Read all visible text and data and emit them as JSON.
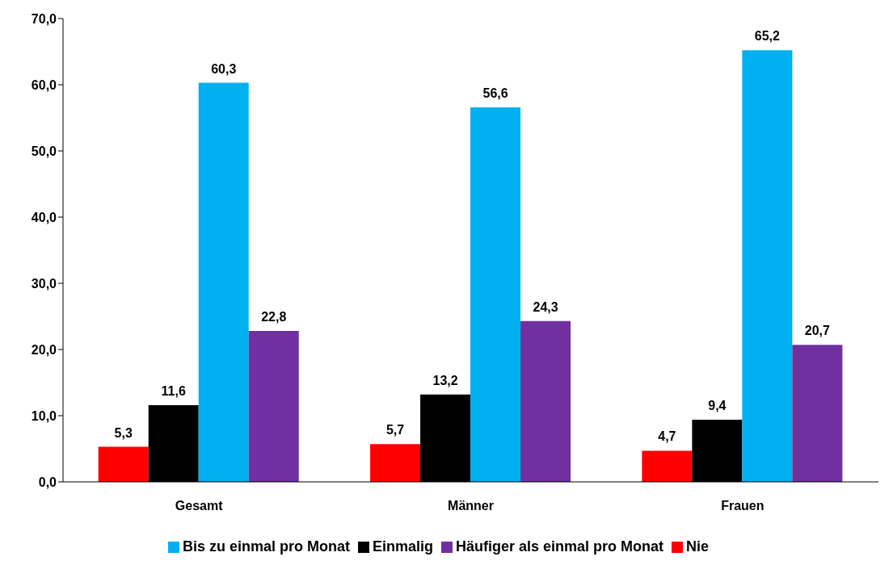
{
  "chart_data": {
    "type": "bar",
    "categories": [
      "Gesamt",
      "Männer",
      "Frauen"
    ],
    "series": [
      {
        "name": "Nie",
        "color": "#ff0000",
        "values": [
          5.3,
          5.7,
          4.7
        ],
        "value_labels": [
          "5,3",
          "5,7",
          "4,7"
        ]
      },
      {
        "name": "Einmalig",
        "color": "#000000",
        "values": [
          11.6,
          13.2,
          9.4
        ],
        "value_labels": [
          "11,6",
          "13,2",
          "9,4"
        ]
      },
      {
        "name": "Bis zu einmal pro Monat",
        "color": "#00b0f0",
        "values": [
          60.3,
          56.6,
          65.2
        ],
        "value_labels": [
          "60,3",
          "56,6",
          "65,2"
        ]
      },
      {
        "name": "Häufiger als einmal pro Monat",
        "color": "#7030a0",
        "values": [
          22.8,
          24.3,
          20.7
        ],
        "value_labels": [
          "22,8",
          "24,3",
          "20,7"
        ]
      }
    ],
    "ylim": [
      0,
      70
    ],
    "yticks": [
      {
        "value": 0,
        "label": "0,0"
      },
      {
        "value": 10,
        "label": "10,0"
      },
      {
        "value": 20,
        "label": "20,0"
      },
      {
        "value": 30,
        "label": "30,0"
      },
      {
        "value": 40,
        "label": "40,0"
      },
      {
        "value": 50,
        "label": "50,0"
      },
      {
        "value": 60,
        "label": "60,0"
      },
      {
        "value": 70,
        "label": "70,0"
      }
    ],
    "grid": false,
    "legend": "bottom"
  }
}
